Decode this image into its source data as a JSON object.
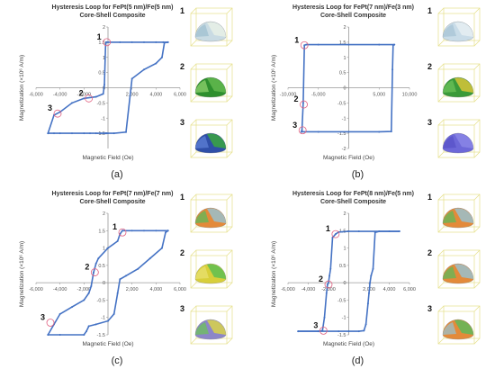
{
  "chart_data": [
    {
      "type": "line",
      "panel_label": "(a)",
      "title": "Hysteresis Loop for FePt(5 nm)/Fe(5 nm)",
      "subtitle": "Core-Shell Composite",
      "xlabel": "Magnetic Field (Oe)",
      "ylabel": "Magnetization (×10⁶ A/m)",
      "xlim": [
        -6000,
        6000
      ],
      "ylim": [
        -2,
        2
      ],
      "xticks": [
        -6000,
        -4000,
        -2000,
        0,
        2000,
        4000,
        6000
      ],
      "xtick_labels": [
        "-6,000",
        "-4,000",
        "-2,000",
        "",
        "2,000",
        "4,000",
        "6,000"
      ],
      "yticks": [
        -1.5,
        -1,
        -0.5,
        0,
        0.5,
        1,
        1.5,
        2
      ],
      "ytick_labels": [
        "-1.5",
        "-1",
        "-0.5",
        "0",
        "0.5",
        "1",
        "1.5",
        "2"
      ],
      "line_color": "#4472C4",
      "series": [
        {
          "x": [
            -5000,
            -4500,
            -4000,
            -3000,
            -2000,
            -1500,
            -1000,
            -600,
            -400,
            -300,
            -200,
            -150,
            -100,
            -100,
            0,
            500,
            1500,
            2000,
            3000,
            4000,
            4500,
            4700,
            5000
          ],
          "y": [
            -1.5,
            -1.5,
            -1.5,
            -1.5,
            -1.5,
            -1.5,
            -1.5,
            -1.5,
            -1.5,
            -1.5,
            -1.5,
            -1.5,
            -1.5,
            -1.5,
            -1.5,
            -1.5,
            -1.46,
            0.3,
            0.6,
            0.8,
            1.0,
            1.48,
            1.5
          ]
        },
        {
          "x": [
            5000,
            4600,
            4000,
            3000,
            2000,
            1000,
            0,
            -100,
            -150,
            -200,
            -300,
            -400,
            -1000,
            -2000,
            -3000,
            -4000,
            -4500,
            -5000
          ],
          "y": [
            1.5,
            1.5,
            1.5,
            1.5,
            1.5,
            1.5,
            1.5,
            1.5,
            1.5,
            1.4,
            0.1,
            -0.2,
            -0.3,
            -0.35,
            -0.5,
            -0.8,
            -0.9,
            -1.5
          ]
        }
      ],
      "markers": [
        {
          "label": "1",
          "x": -100,
          "y": 1.5
        },
        {
          "label": "2",
          "x": -1600,
          "y": -0.35
        },
        {
          "label": "3",
          "x": -4200,
          "y": -0.85
        }
      ],
      "insets": [
        "1",
        "2",
        "3"
      ],
      "inset_colors": [
        [
          "#c9dbe3",
          "#e8f0e6",
          "#9fc0d0"
        ],
        [
          "#2e8f2e",
          "#61b84e",
          "#8fd16d"
        ],
        [
          "#2f4fa8",
          "#3aa63f",
          "#5d7fd6"
        ]
      ]
    },
    {
      "type": "line",
      "panel_label": "(b)",
      "title": "Hysteresis Loop for FePt(7 nm)/Fe(3 nm)",
      "subtitle": "Core-Shell Composite",
      "xlabel": "Magnetic Field (Oe)",
      "ylabel": "Magnetization (×10⁶ A/m)",
      "xlim": [
        -10000,
        10000
      ],
      "ylim": [
        -2,
        2
      ],
      "xticks": [
        -10000,
        -5000,
        0,
        5000,
        10000
      ],
      "xtick_labels": [
        "-10,000",
        "-5,000",
        "",
        "5,000",
        "10,000"
      ],
      "yticks": [
        -2,
        -1.5,
        -1,
        -0.5,
        0,
        0.5,
        1,
        1.5,
        2
      ],
      "ytick_labels": [
        "-2",
        "-1.5",
        "-1",
        "-0.5",
        "0",
        "0.5",
        "1",
        "1.5",
        "2"
      ],
      "line_color": "#4472C4",
      "series": [
        {
          "x": [
            -7800,
            -5000,
            0,
            5000,
            7000,
            7200,
            7300,
            7500
          ],
          "y": [
            -1.45,
            -1.45,
            -1.45,
            -1.45,
            -1.44,
            0.6,
            1.4,
            1.42
          ]
        },
        {
          "x": [
            7500,
            5000,
            0,
            -5000,
            -7000,
            -7300,
            -7500,
            -7700,
            -7800
          ],
          "y": [
            1.42,
            1.42,
            1.42,
            1.42,
            1.42,
            1.4,
            -0.5,
            -1.4,
            -1.45
          ]
        }
      ],
      "markers": [
        {
          "label": "1",
          "x": -7300,
          "y": 1.4
        },
        {
          "label": "2",
          "x": -7400,
          "y": -0.55
        },
        {
          "label": "3",
          "x": -7600,
          "y": -1.4
        }
      ],
      "insets": [
        "1",
        "2",
        "3"
      ],
      "inset_colors": [
        [
          "#c9dce8",
          "#e6eef2",
          "#a7c4d6"
        ],
        [
          "#3a9a3a",
          "#d7c43a",
          "#6cc25a"
        ],
        [
          "#6d68d8",
          "#8a86e6",
          "#5852c8"
        ]
      ]
    },
    {
      "type": "line",
      "panel_label": "(c)",
      "title": "Hysteresis Loop for FePt(7 nm)/Fe(7 nm)",
      "subtitle": "Core-Shell Composite",
      "xlabel": "Magnetic Field (Oe)",
      "ylabel": "Magnetization (×10⁶ A/m)",
      "xlim": [
        -6000,
        6000
      ],
      "ylim": [
        -1.5,
        2
      ],
      "xticks": [
        -6000,
        -4000,
        -2000,
        0,
        2000,
        4000,
        6000
      ],
      "xtick_labels": [
        "-6,000",
        "-4,000",
        "-2,000",
        "",
        "2,000",
        "4,000",
        "6,000"
      ],
      "yticks": [
        -1.5,
        -1,
        -0.5,
        0,
        0.5,
        1,
        1.5,
        2
      ],
      "ytick_labels": [
        "-1.5",
        "-1",
        "-0.5",
        "0",
        "0.5",
        "1",
        "1.5",
        "2"
      ],
      "line_color": "#4472C4",
      "series": [
        {
          "x": [
            -5000,
            -4000,
            -2000,
            -1800,
            -1600,
            -1000,
            0,
            500,
            800,
            1000,
            1500,
            2500,
            3500,
            4500,
            4800,
            5000
          ],
          "y": [
            -1.5,
            -1.5,
            -1.5,
            -1.4,
            -1.25,
            -1.2,
            -1.1,
            -0.9,
            -0.3,
            0.1,
            0.2,
            0.4,
            0.7,
            1.0,
            1.45,
            1.5
          ]
        },
        {
          "x": [
            5000,
            4000,
            3000,
            2000,
            1200,
            1000,
            800,
            0,
            -800,
            -1000,
            -1200,
            -1400,
            -1600,
            -2000,
            -3000,
            -4000,
            -4500,
            -5000
          ],
          "y": [
            1.5,
            1.5,
            1.5,
            1.5,
            1.5,
            1.4,
            1.2,
            1.0,
            0.7,
            0.55,
            0.3,
            -0.1,
            -0.3,
            -0.5,
            -0.7,
            -0.9,
            -1.2,
            -1.5
          ]
        }
      ],
      "markers": [
        {
          "label": "1",
          "x": 1200,
          "y": 1.45
        },
        {
          "label": "2",
          "x": -1100,
          "y": 0.3
        },
        {
          "label": "3",
          "x": -4800,
          "y": -1.15
        }
      ],
      "insets": [
        "1",
        "2",
        "3"
      ],
      "inset_colors": [
        [
          "#e38a3a",
          "#9ac0cc",
          "#5fb85a"
        ],
        [
          "#d8cf3a",
          "#5fbf52",
          "#e8e070"
        ],
        [
          "#8c86c8",
          "#d8d24a",
          "#6cc25a"
        ]
      ]
    },
    {
      "type": "line",
      "panel_label": "(d)",
      "title": "Hysteresis Loop for FePt(8 nm)/Fe(5 nm)",
      "subtitle": "Core-Shell Composite",
      "xlabel": "Magnetic Field (Oe)",
      "ylabel": "Magnetization (×10⁶ A/m)",
      "xlim": [
        -6000,
        6000
      ],
      "ylim": [
        -1.5,
        2
      ],
      "xticks": [
        -6000,
        -4000,
        -2000,
        0,
        2000,
        4000,
        6000
      ],
      "xtick_labels": [
        "-6,000",
        "-4,000",
        "-2,000",
        "",
        "2,000",
        "4,000",
        "6,000"
      ],
      "yticks": [
        -1.5,
        -1,
        -0.5,
        0,
        0.5,
        1,
        1.5,
        2
      ],
      "ytick_labels": [
        "-1.5",
        "-1",
        "-0.5",
        "0",
        "0.5",
        "1",
        "1.5",
        "2"
      ],
      "line_color": "#4472C4",
      "series": [
        {
          "x": [
            -5000,
            -3000,
            -1000,
            0,
            1000,
            1500,
            1700,
            1900,
            2000,
            2100,
            2200,
            2400,
            2600,
            3000,
            4000,
            5000
          ],
          "y": [
            -1.4,
            -1.4,
            -1.4,
            -1.4,
            -1.4,
            -1.38,
            -1.2,
            -0.6,
            -0.3,
            0.0,
            0.2,
            0.4,
            1.45,
            1.48,
            1.48,
            1.48
          ]
        },
        {
          "x": [
            5000,
            3000,
            1000,
            0,
            -1000,
            -1300,
            -1600,
            -1800,
            -1900,
            -2000,
            -2100,
            -2200,
            -2400,
            -2600,
            -3000,
            -5000
          ],
          "y": [
            1.48,
            1.48,
            1.48,
            1.48,
            1.46,
            1.4,
            1.3,
            0.4,
            0.2,
            0.0,
            -0.05,
            -0.3,
            -1.0,
            -1.38,
            -1.4,
            -1.4
          ]
        }
      ],
      "markers": [
        {
          "label": "1",
          "x": -1300,
          "y": 1.4
        },
        {
          "label": "2",
          "x": -2000,
          "y": -0.05
        },
        {
          "label": "3",
          "x": -2500,
          "y": -1.38
        }
      ],
      "insets": [
        "1",
        "2",
        "3"
      ],
      "inset_colors": [
        [
          "#e38a3a",
          "#9ac0cc",
          "#5fb85a"
        ],
        [
          "#e38a3a",
          "#9ac0cc",
          "#5fb85a"
        ],
        [
          "#e38a3a",
          "#5fb85a",
          "#9ac0cc"
        ]
      ]
    }
  ]
}
